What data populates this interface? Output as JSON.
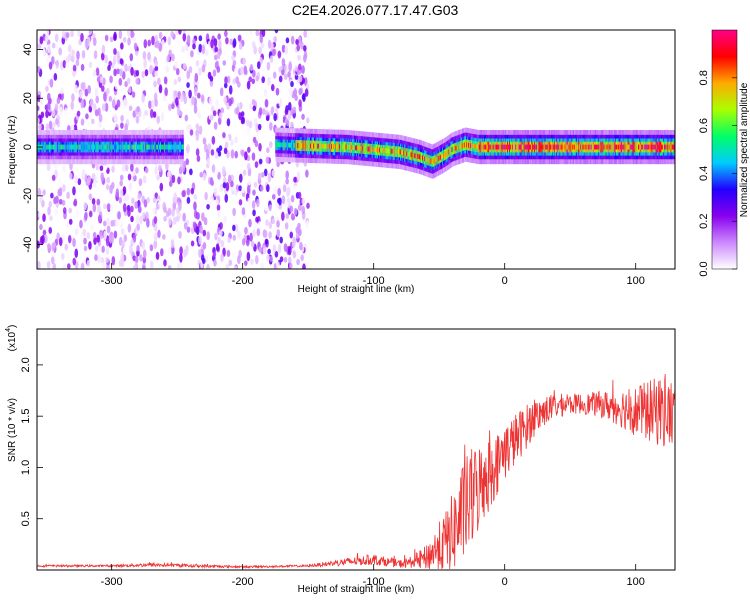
{
  "figure": {
    "title": "C2E4.2026.077.17.47.G03"
  },
  "chart_data": [
    {
      "type": "heatmap",
      "title": "",
      "xlabel": "Height of straight line (km)",
      "ylabel": "Frequency (Hz)",
      "xlim": [
        -357,
        130
      ],
      "ylim": [
        -50,
        48
      ],
      "x_ticks": [
        -300,
        -200,
        -100,
        0,
        100
      ],
      "x_tick_labels": [
        "-300",
        "-200",
        "-100",
        "0",
        "100"
      ],
      "y_ticks": [
        -40,
        -20,
        0,
        20,
        40
      ],
      "y_tick_labels": [
        "-40",
        "-20",
        "0",
        "20",
        "40"
      ],
      "colorbar": {
        "label": "Normalized spectral amplitude",
        "range": [
          0,
          1
        ],
        "ticks": [
          0.0,
          0.2,
          0.4,
          0.6,
          0.8
        ],
        "tick_labels": [
          "0.0",
          "0.2",
          "0.4",
          "0.6",
          "0.8"
        ],
        "colors": [
          "#ffffff",
          "#cc88ff",
          "#8800ee",
          "#2200ff",
          "#00ccff",
          "#00ff66",
          "#aaff00",
          "#ffaa00",
          "#ff0000",
          "#ff0088"
        ]
      },
      "ridge": {
        "description": "signal band center frequency vs height",
        "x": [
          -357,
          -250,
          -175,
          -150,
          -120,
          -100,
          -80,
          -65,
          -55,
          -45,
          -40,
          -30,
          -20,
          0,
          50,
          130
        ],
        "y": [
          0,
          0,
          1,
          0.5,
          0,
          -1,
          -2,
          -4,
          -6,
          -3,
          -1,
          1,
          0,
          0,
          0,
          0
        ],
        "gap": [
          -245,
          -175
        ]
      },
      "noise_region": {
        "x_range": [
          -357,
          -150
        ],
        "max_amplitude": 0.25
      },
      "grid": false
    },
    {
      "type": "line",
      "title": "",
      "xlabel": "Height of straight line (km)",
      "ylabel": "SNR (10 * v/v)",
      "y_scale_label": "(x10",
      "y_scale_exp": "4",
      "xlim": [
        -357,
        130
      ],
      "ylim": [
        0,
        2.35
      ],
      "x_ticks": [
        -300,
        -200,
        -100,
        0,
        100
      ],
      "x_tick_labels": [
        "-300",
        "-200",
        "-100",
        "0",
        "100"
      ],
      "y_ticks": [
        0.5,
        1.0,
        1.5,
        2.0
      ],
      "y_tick_labels": [
        "0.5",
        "1.0",
        "1.5",
        "2.0"
      ],
      "series": [
        {
          "color": "#ee3333",
          "x": [
            -357,
            -300,
            -270,
            -200,
            -150,
            -120,
            -100,
            -80,
            -70,
            -60,
            -50,
            -45,
            -40,
            -35,
            -30,
            -25,
            -20,
            -15,
            -10,
            -5,
            0,
            10,
            20,
            30,
            40,
            50,
            60,
            70,
            80,
            90,
            100,
            110,
            120,
            130
          ],
          "y": [
            0.04,
            0.04,
            0.05,
            0.03,
            0.04,
            0.08,
            0.1,
            0.06,
            0.08,
            0.12,
            0.22,
            0.28,
            0.35,
            0.48,
            0.6,
            0.7,
            0.8,
            0.9,
            0.95,
            1.05,
            1.15,
            1.3,
            1.45,
            1.55,
            1.6,
            1.62,
            1.62,
            1.62,
            1.6,
            1.58,
            1.55,
            1.55,
            1.55,
            1.5
          ],
          "noise_amplitude": [
            0.01,
            0.01,
            0.02,
            0.01,
            0.01,
            0.04,
            0.05,
            0.04,
            0.06,
            0.12,
            0.25,
            0.3,
            0.4,
            0.45,
            0.5,
            0.5,
            0.45,
            0.4,
            0.35,
            0.3,
            0.28,
            0.25,
            0.2,
            0.15,
            0.12,
            0.1,
            0.1,
            0.12,
            0.15,
            0.2,
            0.25,
            0.3,
            0.35,
            0.35
          ]
        }
      ],
      "grid": false
    }
  ]
}
